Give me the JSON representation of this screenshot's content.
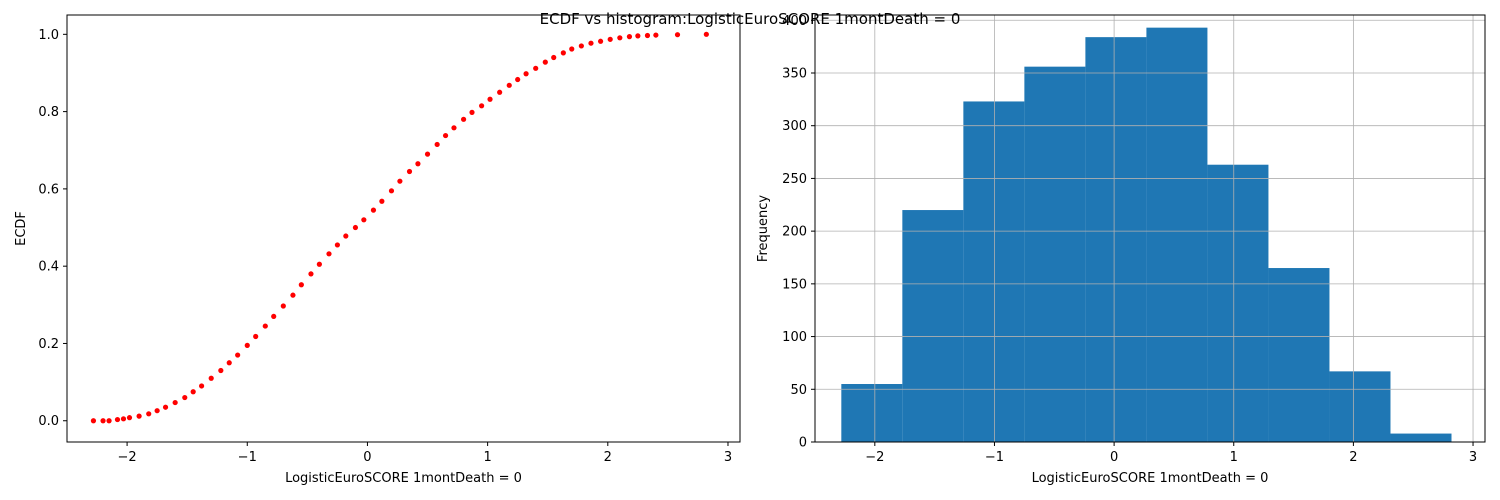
{
  "figure": {
    "suptitle": "ECDF vs histogram:LogisticEuroSCORE 1montDeath = 0"
  },
  "chart_data": [
    {
      "type": "scatter",
      "name": "ECDF",
      "xlabel": "LogisticEuroSCORE 1montDeath = 0",
      "ylabel": "ECDF",
      "xlim": [
        -2.5,
        3.1
      ],
      "ylim": [
        -0.055,
        1.05
      ],
      "xticks": [
        -2,
        -1,
        0,
        1,
        2,
        3
      ],
      "xtick_labels": [
        "−2",
        "−1",
        "0",
        "1",
        "2",
        "3"
      ],
      "yticks": [
        0.0,
        0.2,
        0.4,
        0.6,
        0.8,
        1.0
      ],
      "ytick_labels": [
        "0.0",
        "0.2",
        "0.4",
        "0.6",
        "0.8",
        "1.0"
      ],
      "grid": false,
      "marker_color": "#ff0000",
      "points": [
        [
          -2.28,
          0.0
        ],
        [
          -2.2,
          0.0
        ],
        [
          -2.15,
          0.0
        ],
        [
          -2.08,
          0.003
        ],
        [
          -2.03,
          0.005
        ],
        [
          -1.98,
          0.008
        ],
        [
          -1.9,
          0.012
        ],
        [
          -1.82,
          0.018
        ],
        [
          -1.75,
          0.026
        ],
        [
          -1.68,
          0.035
        ],
        [
          -1.6,
          0.047
        ],
        [
          -1.52,
          0.06
        ],
        [
          -1.45,
          0.075
        ],
        [
          -1.38,
          0.09
        ],
        [
          -1.3,
          0.11
        ],
        [
          -1.22,
          0.13
        ],
        [
          -1.15,
          0.15
        ],
        [
          -1.08,
          0.17
        ],
        [
          -1.0,
          0.195
        ],
        [
          -0.93,
          0.218
        ],
        [
          -0.85,
          0.245
        ],
        [
          -0.78,
          0.27
        ],
        [
          -0.7,
          0.297
        ],
        [
          -0.62,
          0.325
        ],
        [
          -0.55,
          0.352
        ],
        [
          -0.47,
          0.38
        ],
        [
          -0.4,
          0.405
        ],
        [
          -0.32,
          0.432
        ],
        [
          -0.25,
          0.455
        ],
        [
          -0.18,
          0.478
        ],
        [
          -0.1,
          0.5
        ],
        [
          -0.03,
          0.52
        ],
        [
          0.05,
          0.545
        ],
        [
          0.12,
          0.568
        ],
        [
          0.2,
          0.595
        ],
        [
          0.27,
          0.62
        ],
        [
          0.35,
          0.645
        ],
        [
          0.42,
          0.665
        ],
        [
          0.5,
          0.69
        ],
        [
          0.58,
          0.715
        ],
        [
          0.65,
          0.738
        ],
        [
          0.72,
          0.758
        ],
        [
          0.8,
          0.78
        ],
        [
          0.87,
          0.798
        ],
        [
          0.95,
          0.815
        ],
        [
          1.02,
          0.832
        ],
        [
          1.1,
          0.85
        ],
        [
          1.18,
          0.868
        ],
        [
          1.25,
          0.883
        ],
        [
          1.32,
          0.898
        ],
        [
          1.4,
          0.912
        ],
        [
          1.48,
          0.928
        ],
        [
          1.55,
          0.94
        ],
        [
          1.63,
          0.952
        ],
        [
          1.7,
          0.962
        ],
        [
          1.78,
          0.97
        ],
        [
          1.86,
          0.977
        ],
        [
          1.94,
          0.982
        ],
        [
          2.02,
          0.987
        ],
        [
          2.1,
          0.991
        ],
        [
          2.18,
          0.994
        ],
        [
          2.25,
          0.996
        ],
        [
          2.33,
          0.997
        ],
        [
          2.4,
          0.998
        ],
        [
          2.58,
          0.999
        ],
        [
          2.82,
          1.0
        ]
      ]
    },
    {
      "type": "bar",
      "name": "histogram",
      "xlabel": "LogisticEuroSCORE 1montDeath = 0",
      "ylabel": "Frequency",
      "xlim": [
        -2.5,
        3.1
      ],
      "ylim": [
        0,
        405
      ],
      "xticks": [
        -2,
        -1,
        0,
        1,
        2,
        3
      ],
      "xtick_labels": [
        "−2",
        "−1",
        "0",
        "1",
        "2",
        "3"
      ],
      "yticks": [
        0,
        50,
        100,
        150,
        200,
        250,
        300,
        350,
        400
      ],
      "ytick_labels": [
        "0",
        "50",
        "100",
        "150",
        "200",
        "250",
        "300",
        "350",
        "400"
      ],
      "grid": true,
      "bar_color": "#1f77b4",
      "bin_edges": [
        -2.28,
        -1.77,
        -1.26,
        -0.75,
        -0.24,
        0.27,
        0.78,
        1.29,
        1.8,
        2.31,
        2.82
      ],
      "values": [
        55,
        220,
        323,
        356,
        384,
        393,
        263,
        165,
        67,
        8
      ]
    }
  ]
}
